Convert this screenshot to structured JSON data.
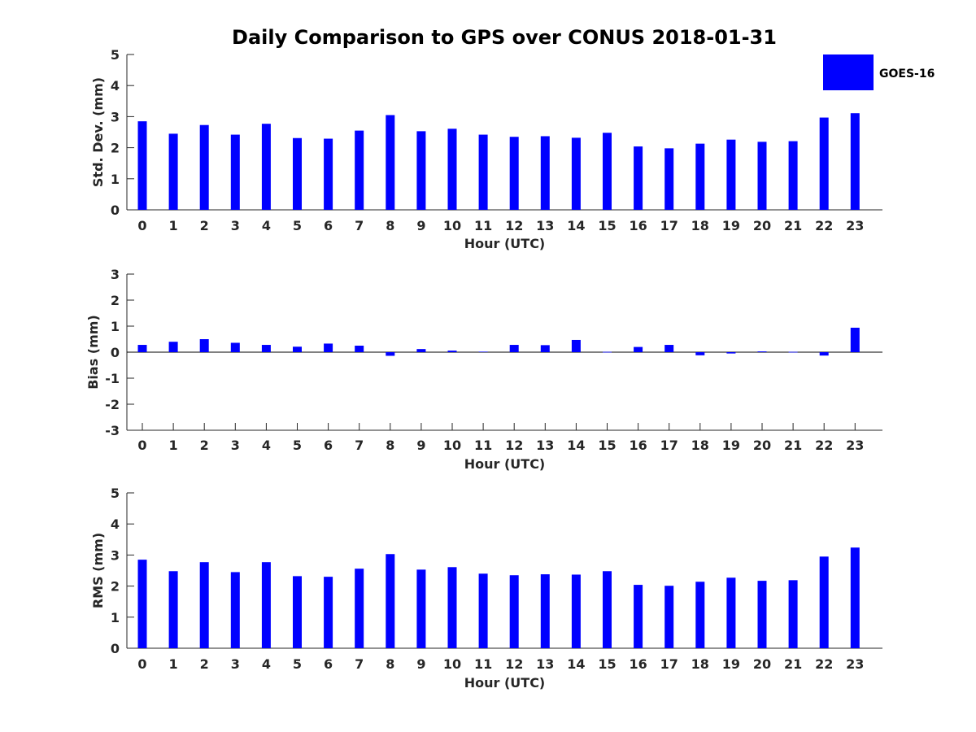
{
  "title": "Daily Comparison to GPS over CONUS 2018-01-31",
  "legend": {
    "label": "GOES-16",
    "color": "#0000ff",
    "placement": "top-right"
  },
  "chart_data": [
    {
      "type": "bar",
      "name": "std-dev",
      "title": "Daily Comparison to GPS over CONUS 2018-01-31",
      "xlabel": "Hour (UTC)",
      "ylabel": "Std. Dev. (mm)",
      "ylim": [
        0,
        5
      ],
      "yticks": [
        0,
        1,
        2,
        3,
        4,
        5
      ],
      "categories": [
        "0",
        "1",
        "2",
        "3",
        "4",
        "5",
        "6",
        "7",
        "8",
        "9",
        "10",
        "11",
        "12",
        "13",
        "14",
        "15",
        "16",
        "17",
        "18",
        "19",
        "20",
        "21",
        "22",
        "23"
      ],
      "series": [
        {
          "name": "GOES-16",
          "color": "#0000ff",
          "values": [
            2.85,
            2.45,
            2.73,
            2.42,
            2.77,
            2.31,
            2.29,
            2.55,
            3.05,
            2.53,
            2.61,
            2.42,
            2.35,
            2.37,
            2.32,
            2.48,
            2.04,
            1.98,
            2.13,
            2.26,
            2.19,
            2.21,
            2.97,
            3.11
          ]
        }
      ]
    },
    {
      "type": "bar",
      "name": "bias",
      "xlabel": "Hour (UTC)",
      "ylabel": "Bias (mm)",
      "ylim": [
        -3,
        3
      ],
      "yticks": [
        -3,
        -2,
        -1,
        0,
        1,
        2,
        3
      ],
      "categories": [
        "0",
        "1",
        "2",
        "3",
        "4",
        "5",
        "6",
        "7",
        "8",
        "9",
        "10",
        "11",
        "12",
        "13",
        "14",
        "15",
        "16",
        "17",
        "18",
        "19",
        "20",
        "21",
        "22",
        "23"
      ],
      "series": [
        {
          "name": "GOES-16",
          "color": "#0000ff",
          "values": [
            0.28,
            0.4,
            0.5,
            0.36,
            0.28,
            0.21,
            0.33,
            0.25,
            -0.14,
            0.12,
            0.06,
            0.02,
            0.28,
            0.27,
            0.47,
            0.0,
            0.2,
            0.28,
            -0.12,
            -0.05,
            0.03,
            0.0,
            -0.13,
            0.94
          ]
        }
      ]
    },
    {
      "type": "bar",
      "name": "rms",
      "xlabel": "Hour (UTC)",
      "ylabel": "RMS (mm)",
      "ylim": [
        0,
        5
      ],
      "yticks": [
        0,
        1,
        2,
        3,
        4,
        5
      ],
      "categories": [
        "0",
        "1",
        "2",
        "3",
        "4",
        "5",
        "6",
        "7",
        "8",
        "9",
        "10",
        "11",
        "12",
        "13",
        "14",
        "15",
        "16",
        "17",
        "18",
        "19",
        "20",
        "21",
        "22",
        "23"
      ],
      "series": [
        {
          "name": "GOES-16",
          "color": "#0000ff",
          "values": [
            2.85,
            2.48,
            2.77,
            2.45,
            2.77,
            2.32,
            2.3,
            2.56,
            3.03,
            2.53,
            2.61,
            2.4,
            2.35,
            2.38,
            2.37,
            2.48,
            2.04,
            2.01,
            2.14,
            2.27,
            2.17,
            2.19,
            2.95,
            3.24
          ]
        }
      ]
    }
  ]
}
